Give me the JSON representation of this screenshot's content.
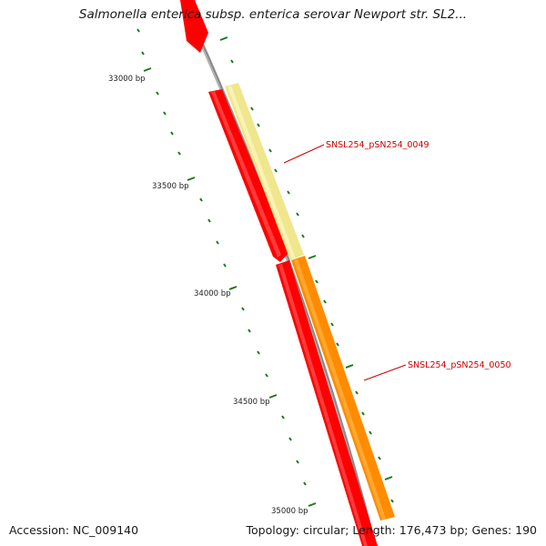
{
  "title": "Salmonella enterica subsp. enterica serovar Newport str. SL2...",
  "footer": {
    "accession": "Accession: NC_009140",
    "stats": "Topology: circular; Length: 176,473 bp; Genes: 190"
  },
  "colors": {
    "backbone": "#8c8c8c",
    "cds_forward": "#ff0000",
    "gene_0049": "#f0e68c",
    "gene_0050": "#ff8c00",
    "tick": "#1a7a1a",
    "label_line": "#cc0000"
  },
  "ruler": {
    "tick_labels": [
      "33000 bp",
      "33500 bp",
      "34000 bp",
      "34500 bp",
      "35000 bp"
    ]
  },
  "genes": [
    {
      "id": "SNSL254_pSN254_0049",
      "label": "SNSL254_pSN254_0049"
    },
    {
      "id": "SNSL254_pSN254_0050",
      "label": "SNSL254_pSN254_0050"
    }
  ]
}
